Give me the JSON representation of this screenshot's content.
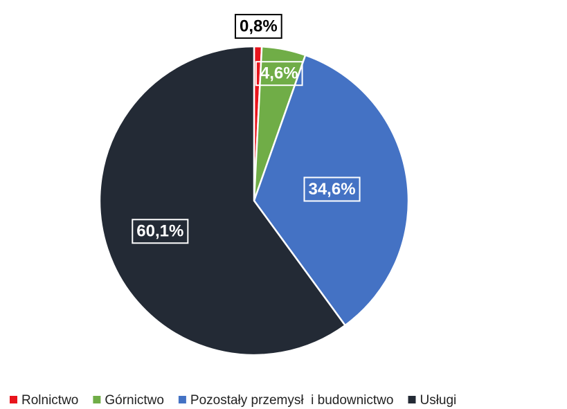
{
  "chart_data": {
    "type": "pie",
    "categories": [
      "Rolnictwo",
      "Górnictwo",
      "Pozostały przemysł  i budownictwo",
      "Usługi"
    ],
    "values": [
      0.8,
      4.6,
      34.6,
      60.1
    ],
    "value_labels": [
      "0,8%",
      "4,6%",
      "34,6%",
      "60,1%"
    ],
    "colors": [
      "#e8141c",
      "#70ad47",
      "#4472c4",
      "#232a35"
    ],
    "legend": "bottom"
  }
}
